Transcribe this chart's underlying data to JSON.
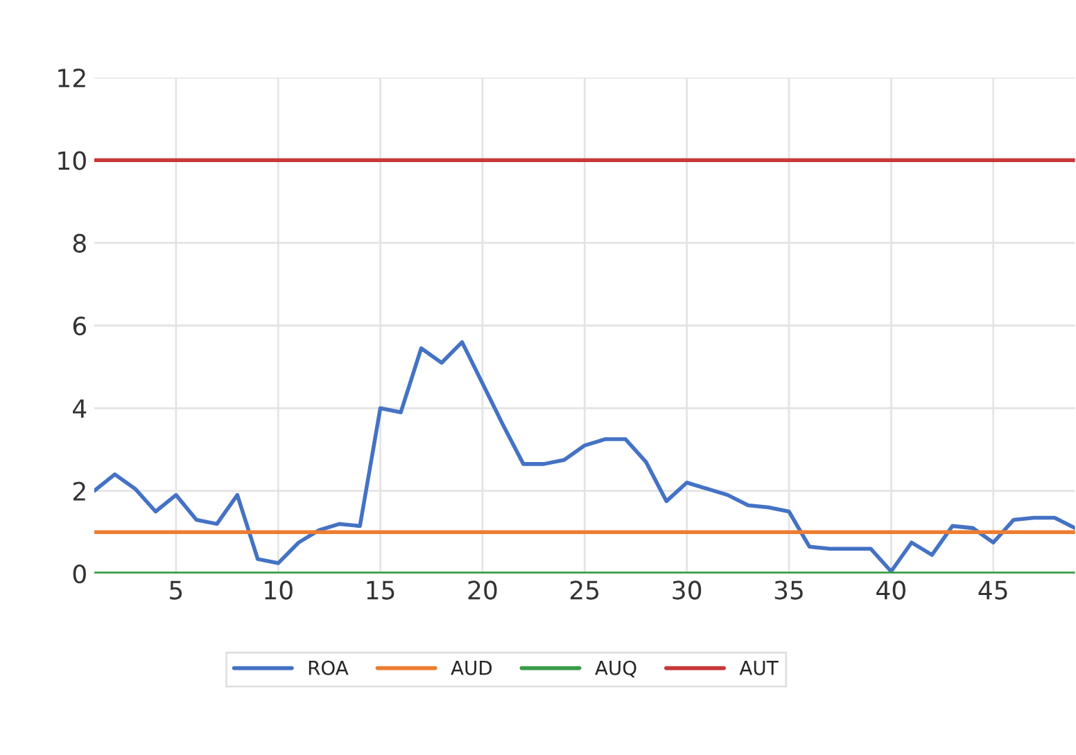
{
  "chart_data": {
    "type": "line",
    "x": [
      1,
      2,
      3,
      4,
      5,
      6,
      7,
      8,
      9,
      10,
      11,
      12,
      13,
      14,
      15,
      16,
      17,
      18,
      19,
      20,
      21,
      22,
      23,
      24,
      25,
      26,
      27,
      28,
      29,
      30,
      31,
      32,
      33,
      34,
      35,
      36,
      37,
      38,
      39,
      40,
      41,
      42,
      43,
      44,
      45,
      46,
      47,
      48,
      49
    ],
    "series": [
      {
        "name": "ROA",
        "color": "#4472c4",
        "values": [
          2.0,
          2.4,
          2.05,
          1.5,
          1.9,
          1.3,
          1.2,
          1.9,
          0.35,
          0.25,
          0.75,
          1.05,
          1.2,
          1.15,
          4.0,
          3.9,
          5.45,
          5.1,
          5.6,
          4.6,
          3.6,
          2.65,
          2.65,
          2.75,
          3.1,
          3.25,
          3.25,
          2.7,
          1.75,
          2.2,
          2.05,
          1.9,
          1.65,
          1.6,
          1.5,
          0.65,
          0.6,
          0.6,
          0.6,
          0.05,
          0.75,
          0.45,
          1.15,
          1.1,
          0.75,
          1.3,
          1.35,
          1.35,
          1.1
        ]
      },
      {
        "name": "AUD",
        "color": "#ed7d31",
        "values": [
          1,
          1,
          1,
          1,
          1,
          1,
          1,
          1,
          1,
          1,
          1,
          1,
          1,
          1,
          1,
          1,
          1,
          1,
          1,
          1,
          1,
          1,
          1,
          1,
          1,
          1,
          1,
          1,
          1,
          1,
          1,
          1,
          1,
          1,
          1,
          1,
          1,
          1,
          1,
          1,
          1,
          1,
          1,
          1,
          1,
          1,
          1,
          1,
          1
        ]
      },
      {
        "name": "AUQ",
        "color": "#3a9b48",
        "values": [
          0,
          0,
          0,
          0,
          0,
          0,
          0,
          0,
          0,
          0,
          0,
          0,
          0,
          0,
          0,
          0,
          0,
          0,
          0,
          0,
          0,
          0,
          0,
          0,
          0,
          0,
          0,
          0,
          0,
          0,
          0,
          0,
          0,
          0,
          0,
          0,
          0,
          0,
          0,
          0,
          0,
          0,
          0,
          0,
          0,
          0,
          0,
          0,
          0
        ]
      },
      {
        "name": "AUT",
        "color": "#c83737",
        "values": [
          10,
          10,
          10,
          10,
          10,
          10,
          10,
          10,
          10,
          10,
          10,
          10,
          10,
          10,
          10,
          10,
          10,
          10,
          10,
          10,
          10,
          10,
          10,
          10,
          10,
          10,
          10,
          10,
          10,
          10,
          10,
          10,
          10,
          10,
          10,
          10,
          10,
          10,
          10,
          10,
          10,
          10,
          10,
          10,
          10,
          10,
          10,
          10,
          10
        ]
      }
    ],
    "xlim": [
      1,
      49
    ],
    "xticks": [
      5,
      10,
      15,
      20,
      25,
      30,
      35,
      40,
      45
    ],
    "ylim": [
      0,
      12
    ],
    "yticks": [
      0,
      2,
      4,
      6,
      8,
      10,
      12
    ],
    "grid": true,
    "legend": "bottom",
    "marker": "none",
    "line_style": "solid"
  }
}
